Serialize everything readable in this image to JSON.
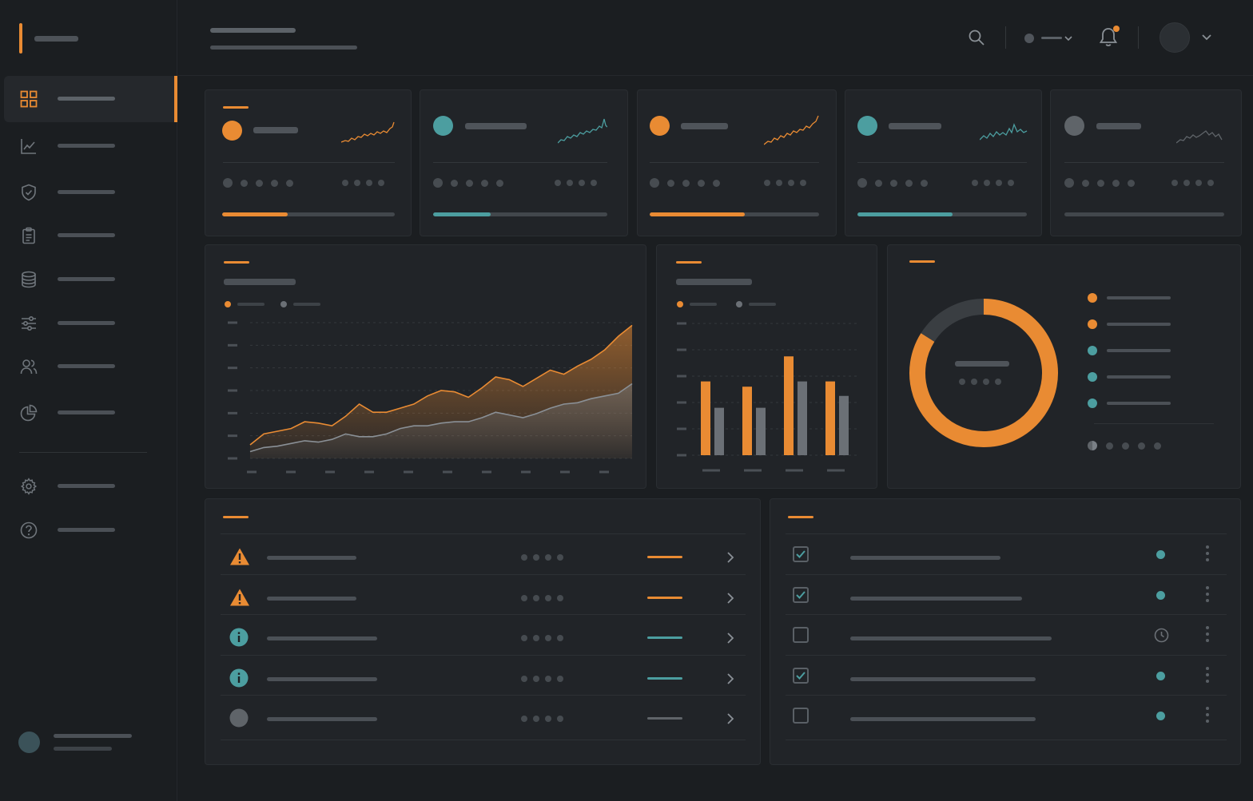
{
  "colors": {
    "accent": "#e98b33",
    "teal": "#4c9ea0",
    "grey": "#5f6469",
    "background": "#1b1e21",
    "panel": "#212428"
  },
  "sidebar": {
    "items": [
      {
        "icon": "grid-icon",
        "active": true
      },
      {
        "icon": "line-chart-icon",
        "active": false
      },
      {
        "icon": "shield-check-icon",
        "active": false
      },
      {
        "icon": "clipboard-icon",
        "active": false
      },
      {
        "icon": "database-icon",
        "active": false
      },
      {
        "icon": "sliders-icon",
        "active": false
      },
      {
        "icon": "users-icon",
        "active": false
      },
      {
        "icon": "pie-chart-icon",
        "active": false
      }
    ],
    "footer_items": [
      {
        "icon": "gear-icon"
      },
      {
        "icon": "help-circle-icon"
      }
    ]
  },
  "header": {
    "icons": [
      "search-icon",
      "status-dropdown",
      "bell-icon",
      "avatar"
    ],
    "notification_unread": true
  },
  "kpi_cards": [
    {
      "color": "orange",
      "progress": 0.38,
      "trend": "up"
    },
    {
      "color": "teal",
      "progress": 0.33,
      "trend": "up"
    },
    {
      "color": "orange",
      "progress": 0.56,
      "trend": "up"
    },
    {
      "color": "teal",
      "progress": 0.56,
      "trend": "flat"
    },
    {
      "color": "grey",
      "progress": 0.0,
      "trend": "flat"
    }
  ],
  "chart_data": [
    {
      "type": "area",
      "title": "",
      "series": [
        {
          "values": [
            10,
            18,
            20,
            22,
            27,
            26,
            24,
            31,
            40,
            34,
            34,
            37,
            40,
            46,
            50,
            49,
            45,
            52,
            60,
            58,
            53,
            59,
            65,
            62,
            68,
            73,
            80,
            90,
            98
          ]
        },
        {
          "values": [
            5,
            8,
            9,
            11,
            13,
            12,
            14,
            18,
            16,
            16,
            18,
            22,
            24,
            24,
            26,
            27,
            27,
            30,
            34,
            32,
            30,
            33,
            37,
            40,
            41,
            44,
            46,
            48,
            55
          ]
        }
      ],
      "ylim": [
        0,
        100
      ],
      "grid": true
    },
    {
      "type": "bar",
      "title": "",
      "categories": [
        "1",
        "2",
        "3",
        "4"
      ],
      "series": [
        {
          "values": [
            56,
            52,
            75,
            56
          ]
        },
        {
          "values": [
            36,
            36,
            56,
            45
          ]
        }
      ],
      "ylim": [
        0,
        100
      ],
      "grid": true
    },
    {
      "type": "pie",
      "title": "",
      "values": [
        84,
        16
      ],
      "legend_position": "right"
    }
  ],
  "donut_legend": [
    "orange",
    "orange",
    "teal",
    "teal",
    "teal"
  ],
  "alerts_table": {
    "rows": [
      {
        "icon": "warning-icon",
        "status": "orange"
      },
      {
        "icon": "warning-icon",
        "status": "orange"
      },
      {
        "icon": "info-icon",
        "status": "teal"
      },
      {
        "icon": "info-icon",
        "status": "teal"
      },
      {
        "icon": "neutral-circle-icon",
        "status": "grey"
      }
    ]
  },
  "tasks_table": {
    "rows": [
      {
        "checked": true,
        "status": "done"
      },
      {
        "checked": true,
        "status": "done"
      },
      {
        "checked": false,
        "status": "pending"
      },
      {
        "checked": true,
        "status": "done"
      },
      {
        "checked": false,
        "status": "done"
      }
    ]
  }
}
